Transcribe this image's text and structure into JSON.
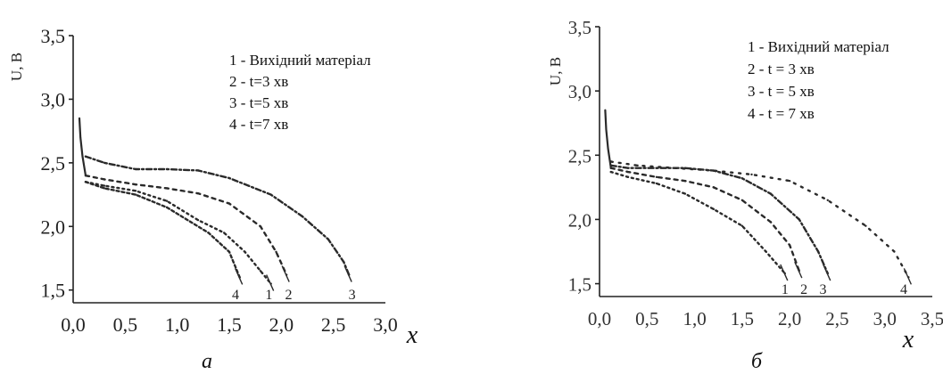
{
  "chart_data": [
    {
      "type": "line",
      "panel_label": "a",
      "ylabel": "U, B",
      "xlabel": "x",
      "xlim": [
        0.0,
        3.0
      ],
      "ylim": [
        1.4,
        3.5
      ],
      "xticks": [
        "0,0",
        "0,5",
        "1,0",
        "1,5",
        "2,0",
        "2,5",
        "3,0"
      ],
      "yticks": [
        "1,5",
        "2,0",
        "2,5",
        "3,0",
        "3,5"
      ],
      "legend": [
        "1 - Вихідний матеріал",
        "2 - t=3 хв",
        "3 - t=5 хв",
        "4 - t=7 хв"
      ],
      "curve_labels": [
        "4",
        "1",
        "2",
        "3"
      ],
      "series": [
        {
          "label": "1",
          "dash": "2 4",
          "x": [
            0.12,
            0.3,
            0.6,
            0.9,
            1.2,
            1.45,
            1.65,
            1.8,
            1.9
          ],
          "y": [
            2.35,
            2.32,
            2.28,
            2.2,
            2.05,
            1.95,
            1.8,
            1.65,
            1.55
          ]
        },
        {
          "label": "2",
          "dash": "4 5",
          "x": [
            0.12,
            0.3,
            0.6,
            0.9,
            1.2,
            1.5,
            1.8,
            1.95,
            2.05
          ],
          "y": [
            2.4,
            2.37,
            2.33,
            2.3,
            2.26,
            2.18,
            2.0,
            1.8,
            1.62
          ]
        },
        {
          "label": "3",
          "dash": "6 3 2 3",
          "x": [
            0.12,
            0.3,
            0.6,
            0.9,
            1.2,
            1.5,
            1.9,
            2.2,
            2.45,
            2.6,
            2.65
          ],
          "y": [
            2.55,
            2.5,
            2.45,
            2.45,
            2.44,
            2.38,
            2.25,
            2.08,
            1.9,
            1.72,
            1.62
          ]
        },
        {
          "label": "4",
          "dash": "3 3",
          "x": [
            0.12,
            0.3,
            0.6,
            0.9,
            1.1,
            1.3,
            1.5,
            1.6
          ],
          "y": [
            2.35,
            2.3,
            2.25,
            2.15,
            2.05,
            1.95,
            1.8,
            1.6
          ]
        }
      ]
    },
    {
      "type": "line",
      "panel_label": "б",
      "ylabel": "U, B",
      "xlabel": "x",
      "xlim": [
        0.0,
        3.5
      ],
      "ylim": [
        1.4,
        3.5
      ],
      "xticks": [
        "0,0",
        "0,5",
        "1,0",
        "1,5",
        "2,0",
        "2,5",
        "3,0",
        "3,5"
      ],
      "yticks": [
        "1,5",
        "2,0",
        "2,5",
        "3,0",
        "3,5"
      ],
      "legend": [
        "1 - Вихідний матеріал",
        "2 - t = 3 хв",
        "3 - t = 5 хв",
        "4 - t = 7 хв"
      ],
      "curve_labels": [
        "1",
        "2",
        "3",
        "4"
      ],
      "series": [
        {
          "label": "1",
          "dash": "2 4",
          "x": [
            0.12,
            0.3,
            0.6,
            0.9,
            1.2,
            1.5,
            1.75,
            1.95
          ],
          "y": [
            2.37,
            2.33,
            2.28,
            2.2,
            2.08,
            1.95,
            1.75,
            1.58
          ]
        },
        {
          "label": "2",
          "dash": "4 5",
          "x": [
            0.12,
            0.3,
            0.6,
            0.9,
            1.2,
            1.5,
            1.8,
            2.0,
            2.1
          ],
          "y": [
            2.4,
            2.37,
            2.33,
            2.3,
            2.25,
            2.15,
            1.98,
            1.8,
            1.6
          ]
        },
        {
          "label": "3",
          "dash": "6 3 2 3",
          "x": [
            0.12,
            0.3,
            0.6,
            0.9,
            1.2,
            1.5,
            1.8,
            2.1,
            2.3,
            2.4
          ],
          "y": [
            2.42,
            2.4,
            2.4,
            2.4,
            2.38,
            2.32,
            2.2,
            2.0,
            1.75,
            1.58
          ]
        },
        {
          "label": "4",
          "dash": "2 7",
          "x": [
            0.12,
            0.4,
            0.8,
            1.2,
            1.6,
            2.0,
            2.4,
            2.8,
            3.1,
            3.25
          ],
          "y": [
            2.45,
            2.42,
            2.4,
            2.38,
            2.35,
            2.3,
            2.15,
            1.95,
            1.75,
            1.55
          ]
        }
      ]
    }
  ]
}
